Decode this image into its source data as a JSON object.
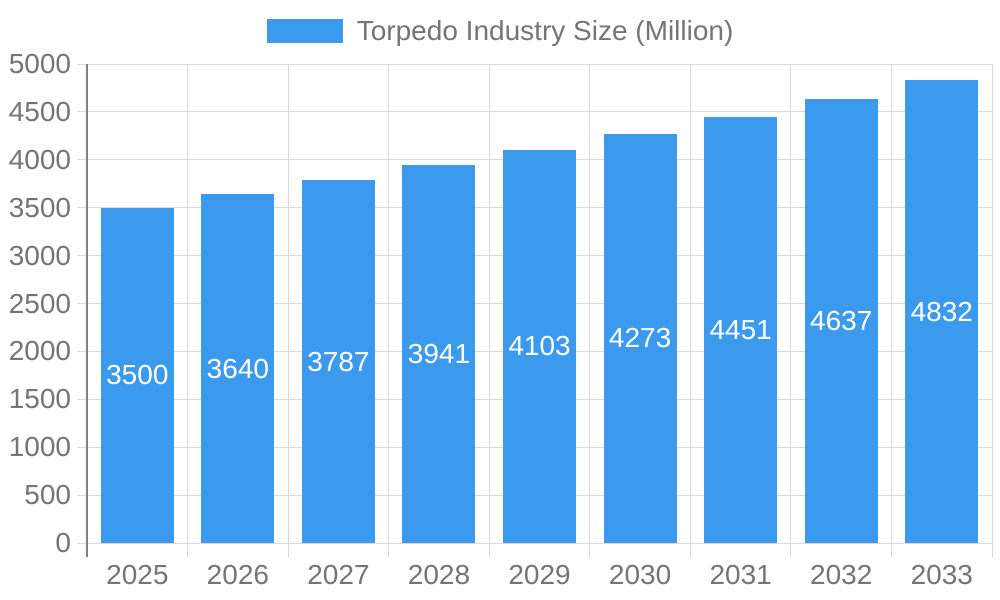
{
  "chart_data": {
    "type": "bar",
    "title": "",
    "series_name": "Torpedo Industry Size (Million)",
    "categories": [
      "2025",
      "2026",
      "2027",
      "2028",
      "2029",
      "2030",
      "2031",
      "2032",
      "2033"
    ],
    "values": [
      3500,
      3640,
      3787,
      3941,
      4103,
      4273,
      4451,
      4637,
      4832
    ],
    "value_labels": [
      "3500",
      "3640",
      "3787",
      "3941",
      "4103",
      "4273",
      "4451",
      "4637",
      "4832"
    ],
    "xlabel": "",
    "ylabel": "",
    "ylim": [
      0,
      5000
    ],
    "ytick_step": 500,
    "yticks": [
      0,
      500,
      1000,
      1500,
      2000,
      2500,
      3000,
      3500,
      4000,
      4500,
      5000
    ],
    "grid": true,
    "legend_position": "top-center",
    "bar_label_position": "inside-center",
    "colors": {
      "bar": "#3B99EE",
      "bar_label": "#FFFFFF",
      "axis_label": "#757575",
      "grid_line": "#D9D9D9",
      "axis_line": "#808080",
      "background": "#FFFFFF"
    }
  }
}
